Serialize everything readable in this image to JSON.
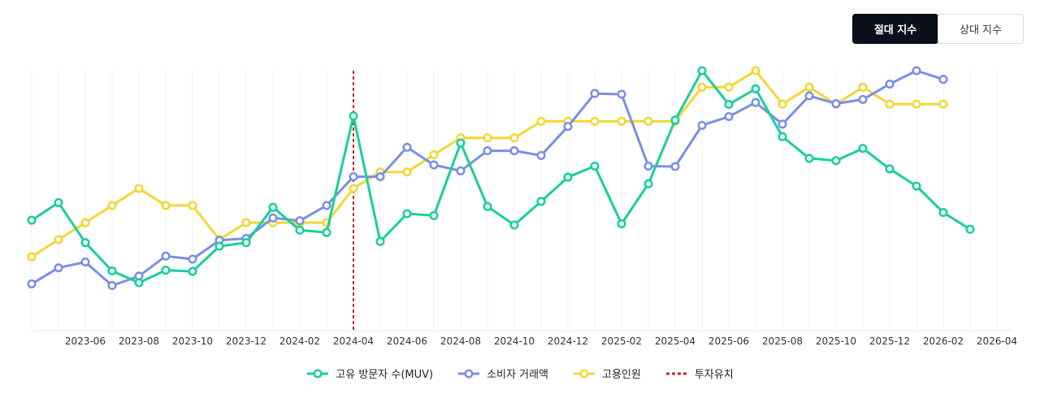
{
  "toggle": {
    "absolute_label": "절대 지수",
    "relative_label": "상대 지수"
  },
  "colors": {
    "muv": "#19cf9a",
    "consumer": "#7b8ee6",
    "employees": "#f5d633",
    "investment": "#c8262b"
  },
  "legend": {
    "muv": "고유 방문자 수(MUV)",
    "consumer": "소비자 거래액",
    "employees": "고용인원",
    "investment": "투자유치"
  },
  "chart_data": {
    "type": "line",
    "categories": [
      "2023-04",
      "2023-05",
      "2023-06",
      "2023-07",
      "2023-08",
      "2023-09",
      "2023-10",
      "2023-11",
      "2023-12",
      "2024-01",
      "2024-02",
      "2024-03",
      "2024-04",
      "2024-05",
      "2024-06",
      "2024-07",
      "2024-08",
      "2024-09",
      "2024-10",
      "2024-11",
      "2024-12",
      "2025-01",
      "2025-02",
      "2025-03",
      "2025-04",
      "2025-05",
      "2025-06",
      "2025-07",
      "2025-08",
      "2025-09",
      "2025-10",
      "2025-11",
      "2025-12",
      "2026-01",
      "2026-02",
      "2026-03",
      "2026-04"
    ],
    "x_tick_labels": [
      "2023-06",
      "2023-08",
      "2023-10",
      "2023-12",
      "2024-02",
      "2024-04",
      "2024-06",
      "2024-08",
      "2024-10",
      "2024-12",
      "2025-02",
      "2025-04",
      "2025-06",
      "2025-08",
      "2025-10",
      "2025-12",
      "2026-02",
      "2026-04"
    ],
    "ylim": [
      0,
      100
    ],
    "grid": "vertical",
    "legend_position": "bottom",
    "marker": "2024-04",
    "series": [
      {
        "name": "고유 방문자 수(MUV)",
        "key": "muv",
        "values": [
          36.5,
          44.0,
          27.0,
          15.0,
          10.0,
          15.3,
          14.8,
          25.5,
          27.0,
          42.0,
          32.3,
          31.3,
          80.8,
          27.5,
          39.3,
          38.5,
          69.3,
          42.3,
          34.5,
          44.5,
          54.8,
          59.5,
          35.0,
          52.0,
          79.0,
          100.0,
          85.7,
          92.3,
          72.0,
          62.8,
          61.8,
          67.0,
          58.3,
          51.0,
          39.8,
          32.7,
          null
        ]
      },
      {
        "name": "소비자 거래액",
        "key": "consumer",
        "values": [
          9.5,
          16.3,
          18.8,
          8.8,
          12.8,
          21.3,
          20.0,
          28.0,
          28.8,
          37.5,
          36.3,
          42.8,
          55.0,
          55.0,
          67.5,
          60.0,
          57.5,
          66.0,
          66.0,
          64.0,
          76.3,
          90.3,
          90.0,
          59.5,
          59.3,
          76.8,
          80.5,
          86.5,
          77.3,
          89.3,
          86.0,
          87.8,
          94.3,
          100.0,
          96.3,
          null,
          null
        ]
      },
      {
        "name": "고용인원",
        "key": "employees",
        "values": [
          21.0,
          28.3,
          35.5,
          42.8,
          50.0,
          42.8,
          42.8,
          28.3,
          35.5,
          35.5,
          35.5,
          35.5,
          50.0,
          57.0,
          57.0,
          64.3,
          71.5,
          71.5,
          71.5,
          78.5,
          78.5,
          78.5,
          78.5,
          78.5,
          78.5,
          93.0,
          93.0,
          100.0,
          85.8,
          93.0,
          85.8,
          93.0,
          85.8,
          85.8,
          85.8,
          null,
          null
        ]
      }
    ]
  }
}
